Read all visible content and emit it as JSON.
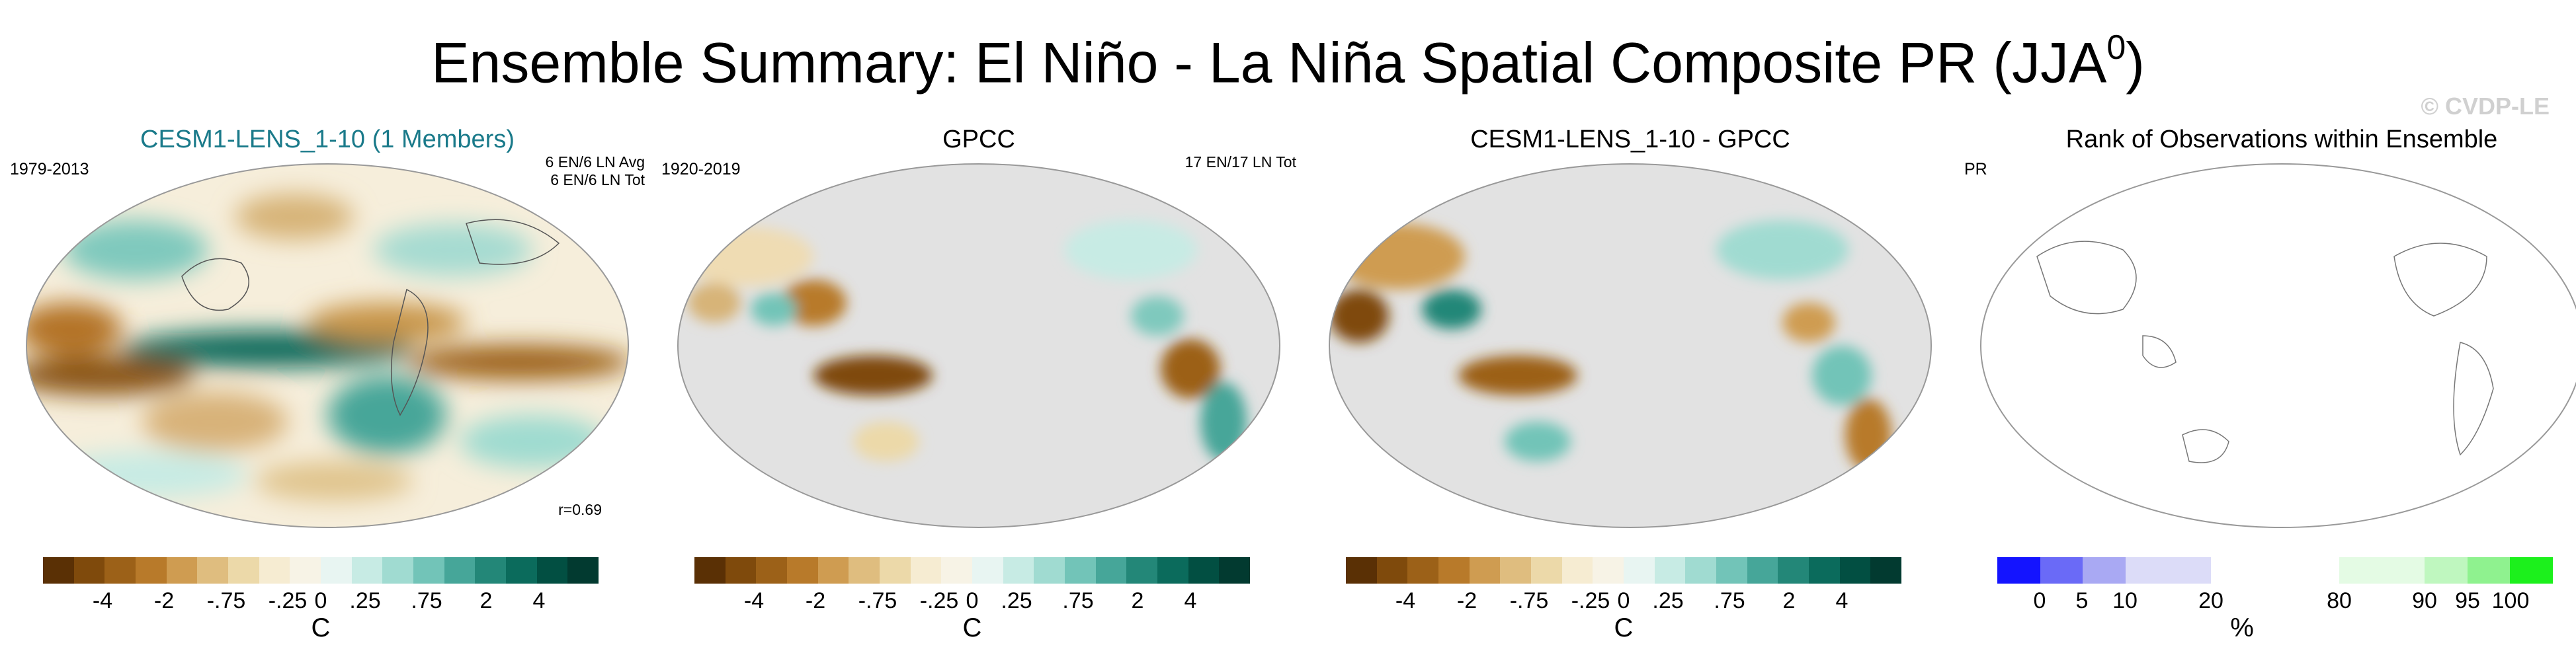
{
  "title": "Ensemble Summary: El Niño - La Niña Spatial Composite PR (JJA",
  "title_sup": "0",
  "title_close": ")",
  "watermark": "© CVDP-LE",
  "panels": [
    {
      "title": "CESM1-LENS_1-10 (1 Members)",
      "left_label": "1979-2013",
      "right_line1": "6 EN/6 LN Avg",
      "right_line2": "6 EN/6 LN Tot",
      "corr": "r=0.69",
      "unit": "C",
      "ticks": [
        "-4",
        "-2",
        "-.75",
        "-.25",
        "0",
        ".25",
        ".75",
        "2",
        "4"
      ]
    },
    {
      "title": "GPCC",
      "left_label": "1920-2019",
      "right_line1": "17 EN/17 LN Tot",
      "unit": "C",
      "ticks": [
        "-4",
        "-2",
        "-.75",
        "-.25",
        "0",
        ".25",
        ".75",
        "2",
        "4"
      ]
    },
    {
      "title": "CESM1-LENS_1-10 - GPCC",
      "unit": "C",
      "ticks": [
        "-4",
        "-2",
        "-.75",
        "-.25",
        "0",
        ".25",
        ".75",
        "2",
        "4"
      ]
    },
    {
      "title": "Rank of Observations within Ensemble",
      "left_label": "PR",
      "right_line1": "--%",
      "unit": "%",
      "ticks": [
        "0",
        "5",
        "10",
        "20",
        "80",
        "90",
        "95",
        "100"
      ]
    }
  ],
  "colors": {
    "brown_teal": [
      "#5a3005",
      "#7f4a0c",
      "#9c6118",
      "#b87a2a",
      "#cf9c51",
      "#dfbd7f",
      "#ecd9a9",
      "#f6ecd2",
      "#f7f3e6",
      "#e8f5f2",
      "#c7ebe4",
      "#a0dbd1",
      "#72c4b8",
      "#46a699",
      "#238778",
      "#0b6b5c",
      "#024f42",
      "#023a30"
    ],
    "rank": [
      "#1414ff",
      "#6a6af7",
      "#a9a9f3",
      "#dcdcf8",
      "#dcdcf8",
      "#ffffff",
      "#ffffff",
      "#ffffff",
      "#e4fbe4",
      "#e4fbe4",
      "#bff7bf",
      "#8ff28f",
      "#1cf01c"
    ]
  },
  "chart_data": [
    {
      "type": "heatmap",
      "title": "CESM1-LENS_1-10 (1 Members)",
      "period": "1979-2013",
      "composite_counts": [
        "6 EN/6 LN Avg",
        "6 EN/6 LN Tot"
      ],
      "pattern_correlation": 0.69,
      "colorbar_ticks": [
        -4,
        -2,
        -0.75,
        -0.25,
        0,
        0.25,
        0.75,
        2,
        4
      ],
      "colorbar_unit": "C",
      "projection": "Robinson, global"
    },
    {
      "type": "heatmap",
      "title": "GPCC",
      "period": "1920-2019",
      "composite_counts": [
        "17 EN/17 LN Tot"
      ],
      "colorbar_ticks": [
        -4,
        -2,
        -0.75,
        -0.25,
        0,
        0.25,
        0.75,
        2,
        4
      ],
      "colorbar_unit": "C",
      "coverage": "land only"
    },
    {
      "type": "heatmap",
      "title": "CESM1-LENS_1-10 - GPCC",
      "colorbar_ticks": [
        -4,
        -2,
        -0.75,
        -0.25,
        0,
        0.25,
        0.75,
        2,
        4
      ],
      "colorbar_unit": "C",
      "coverage": "land only"
    },
    {
      "type": "heatmap",
      "title": "Rank of Observations within Ensemble",
      "variable": "PR",
      "rank_summary": "--%",
      "colorbar_ticks": [
        0,
        5,
        10,
        20,
        80,
        90,
        95,
        100
      ],
      "colorbar_unit": "%",
      "data": "empty (coastlines only)"
    }
  ]
}
